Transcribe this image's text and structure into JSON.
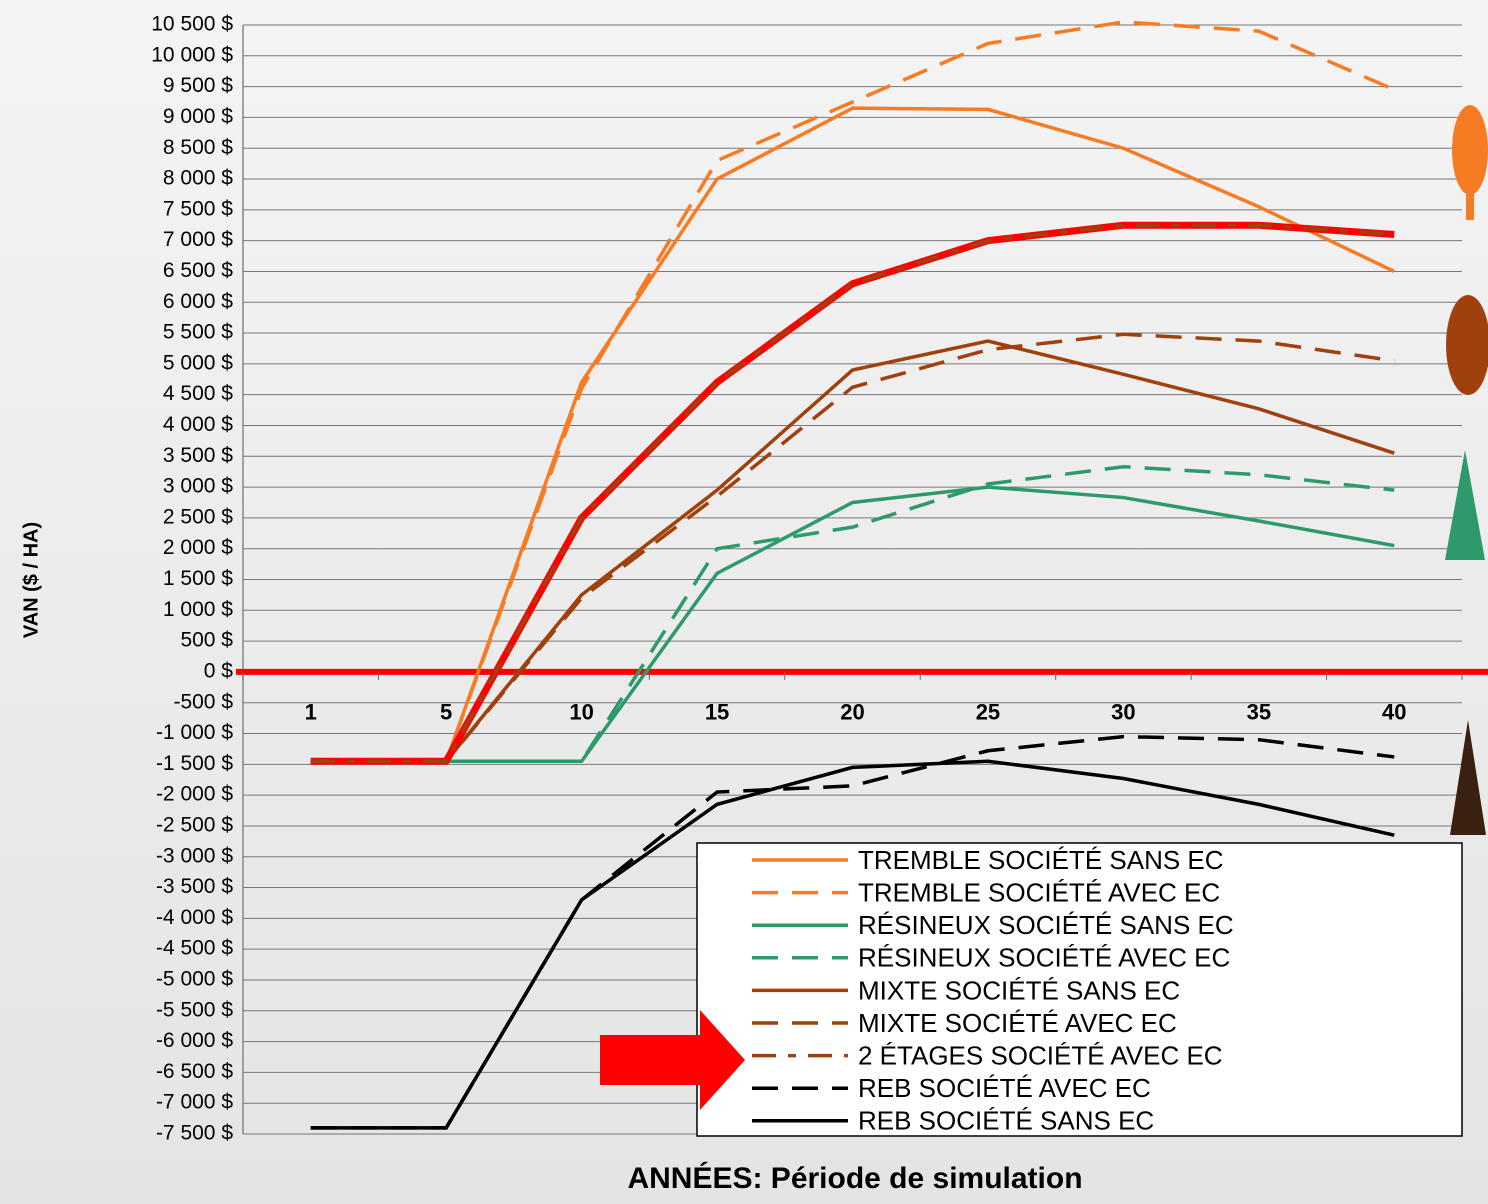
{
  "chart_data": {
    "type": "line",
    "y_label": "VAN ($ / HA)",
    "x_label": "ANNÉES: Période de simulation",
    "categories": [
      "1",
      "5",
      "10",
      "15",
      "20",
      "25",
      "30",
      "35",
      "40"
    ],
    "ylim": [
      -7500,
      10500
    ],
    "yticks": [
      {
        "value": -7500,
        "label": "-7 500 $"
      },
      {
        "value": -7000,
        "label": "-7 000 $"
      },
      {
        "value": -6500,
        "label": "-6 500 $"
      },
      {
        "value": -6000,
        "label": "-6 000 $"
      },
      {
        "value": -5500,
        "label": "-5 500 $"
      },
      {
        "value": -5000,
        "label": "-5 000 $"
      },
      {
        "value": -4500,
        "label": "-4 500 $"
      },
      {
        "value": -4000,
        "label": "-4 000 $"
      },
      {
        "value": -3500,
        "label": "-3 500 $"
      },
      {
        "value": -3000,
        "label": "-3 000 $"
      },
      {
        "value": -2500,
        "label": "-2 500 $"
      },
      {
        "value": -2000,
        "label": "-2 000 $"
      },
      {
        "value": -1500,
        "label": "-1 500 $"
      },
      {
        "value": -1000,
        "label": "-1 000 $"
      },
      {
        "value": -500,
        "label": "-500 $"
      },
      {
        "value": 0,
        "label": "0 $"
      },
      {
        "value": 500,
        "label": "500 $"
      },
      {
        "value": 1000,
        "label": "1 000 $"
      },
      {
        "value": 1500,
        "label": "1 500 $"
      },
      {
        "value": 2000,
        "label": "2 000 $"
      },
      {
        "value": 2500,
        "label": "2 500 $"
      },
      {
        "value": 3000,
        "label": "3 000 $"
      },
      {
        "value": 3500,
        "label": "3 500 $"
      },
      {
        "value": 4000,
        "label": "4 000 $"
      },
      {
        "value": 4500,
        "label": "4 500 $"
      },
      {
        "value": 5000,
        "label": "5 000 $"
      },
      {
        "value": 5500,
        "label": "5 500 $"
      },
      {
        "value": 6000,
        "label": "6 000 $"
      },
      {
        "value": 6500,
        "label": "6 500 $"
      },
      {
        "value": 7000,
        "label": "7 000 $"
      },
      {
        "value": 7500,
        "label": "7 500 $"
      },
      {
        "value": 8000,
        "label": "8 000 $"
      },
      {
        "value": 8500,
        "label": "8 500 $"
      },
      {
        "value": 9000,
        "label": "9 000 $"
      },
      {
        "value": 9500,
        "label": "9 500 $"
      },
      {
        "value": 10000,
        "label": "10 000 $"
      },
      {
        "value": 10500,
        "label": "10 500 $"
      }
    ],
    "grid": true,
    "reference_line": {
      "value": 0,
      "color": "#ff0000"
    },
    "legend": "lower right",
    "series": [
      {
        "name": "TREMBLE SOCIÉTÉ SANS EC",
        "color": "#f77b22",
        "dash": "solid",
        "values": [
          -1450,
          -1450,
          4700,
          8000,
          9150,
          9130,
          8500,
          7550,
          6500
        ]
      },
      {
        "name": "TREMBLE SOCIÉTÉ AVEC EC",
        "color": "#f77b22",
        "dash": "long",
        "values": [
          -1450,
          -1450,
          4600,
          8300,
          9250,
          10200,
          10550,
          10400,
          9450
        ]
      },
      {
        "name": "RÉSINEUX SOCIÉTÉ SANS EC",
        "color": "#2e9a6c",
        "dash": "solid",
        "values": [
          -1450,
          -1450,
          -1450,
          1600,
          2750,
          3000,
          2830,
          2450,
          2050
        ]
      },
      {
        "name": "RÉSINEUX SOCIÉTÉ AVEC EC",
        "color": "#2e9a6c",
        "dash": "long",
        "values": [
          -1450,
          -1450,
          -1450,
          2000,
          2350,
          3050,
          3330,
          3200,
          2950
        ]
      },
      {
        "name": "MIXTE SOCIÉTÉ SANS EC",
        "color": "#a0410d",
        "dash": "solid",
        "values": [
          -1450,
          -1450,
          1250,
          2950,
          4900,
          5370,
          4830,
          4270,
          3550
        ]
      },
      {
        "name": "MIXTE SOCIÉTÉ AVEC EC",
        "color": "#a0410d",
        "dash": "long",
        "values": [
          -1450,
          -1450,
          1200,
          2850,
          4620,
          5230,
          5480,
          5370,
          5050
        ]
      },
      {
        "name": "2 ÉTAGES SOCIÉTÉ AVEC EC",
        "color": "#a0410d",
        "dash": "longshort",
        "highlight_color": "#ff0000",
        "values": [
          -1450,
          -1450,
          2500,
          4700,
          6300,
          7000,
          7250,
          7250,
          7100
        ]
      },
      {
        "name": "REB SOCIÉTÉ AVEC EC",
        "color": "#000000",
        "dash": "long",
        "values": [
          -7400,
          -7400,
          -3700,
          -1950,
          -1850,
          -1280,
          -1050,
          -1100,
          -1380
        ]
      },
      {
        "name": "REB SOCIÉTÉ SANS EC",
        "color": "#000000",
        "dash": "solid",
        "values": [
          -7400,
          -7400,
          -3700,
          -2150,
          -1550,
          -1450,
          -1730,
          -2150,
          -2650
        ]
      }
    ]
  }
}
